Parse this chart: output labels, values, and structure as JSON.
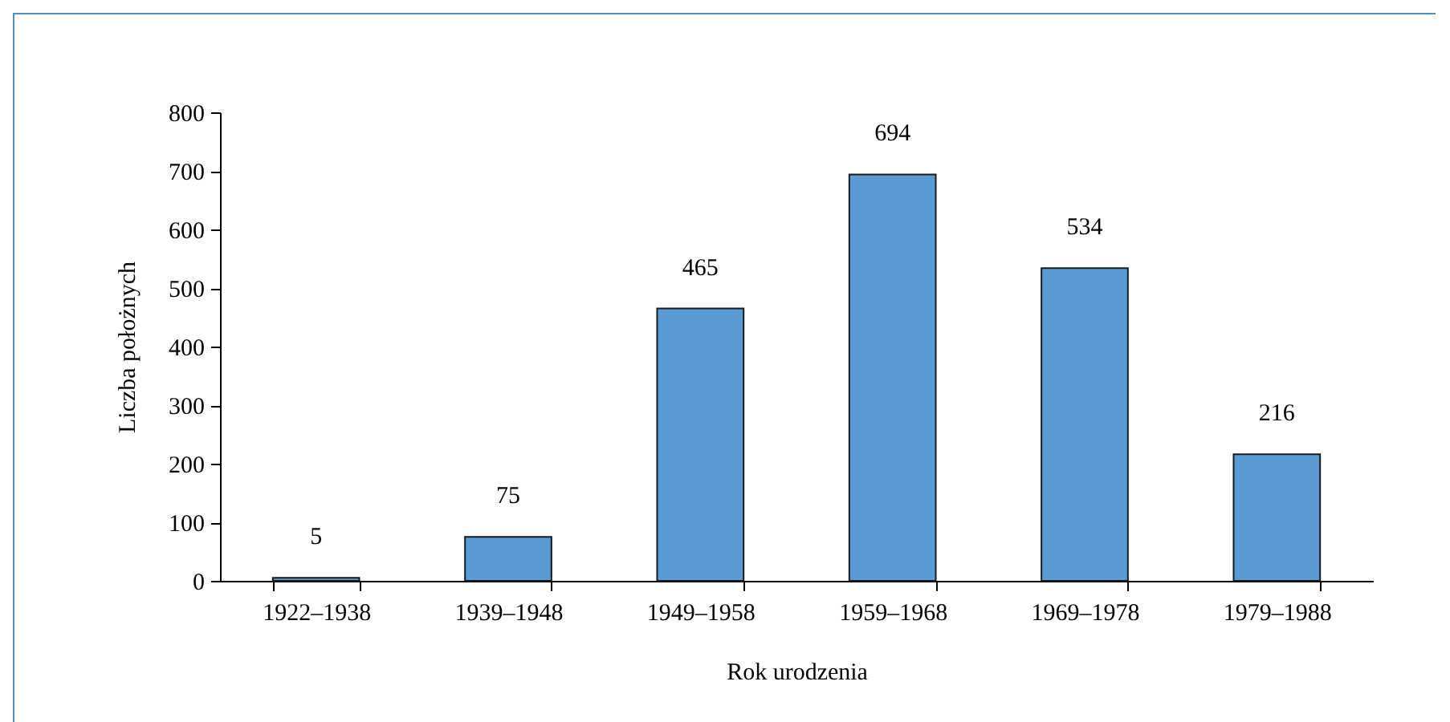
{
  "chart_data": {
    "type": "bar",
    "xlabel": "Rok urodzenia",
    "ylabel": "Liczba położnych",
    "categories": [
      "1922–1938",
      "1939–1948",
      "1949–1958",
      "1959–1968",
      "1969–1978",
      "1979–1988"
    ],
    "values": [
      5,
      75,
      465,
      694,
      534,
      216
    ],
    "color": "#5b9bd5",
    "ylim": [
      0,
      800
    ],
    "yticks": [
      0,
      100,
      200,
      300,
      400,
      500,
      600,
      700,
      800
    ],
    "grid": false,
    "data_labels": true
  }
}
